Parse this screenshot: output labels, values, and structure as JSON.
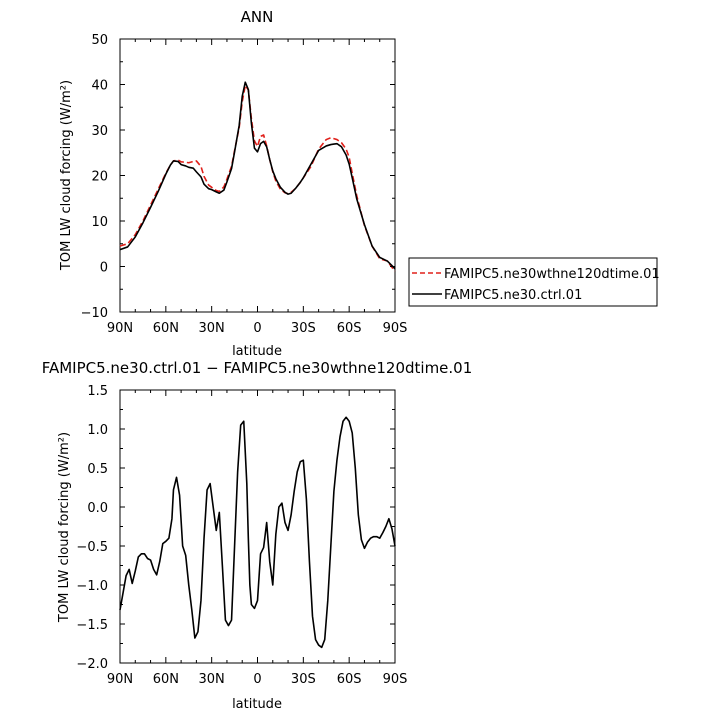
{
  "chart_data": [
    {
      "type": "line",
      "title": "ANN",
      "xlabel": "latitude",
      "ylabel": "TOM LW cloud forcing (W/m²)",
      "xlim": [
        90,
        -90
      ],
      "ylim": [
        -10,
        50
      ],
      "yticks": [
        -10,
        0,
        10,
        20,
        30,
        40,
        50
      ],
      "ytick_labels": [
        "−10",
        "0",
        "10",
        "20",
        "30",
        "40",
        "50"
      ],
      "xticks": [
        90,
        60,
        30,
        0,
        -30,
        -60,
        -90
      ],
      "xtick_labels": [
        "90N",
        "60N",
        "30N",
        "0",
        "30S",
        "60S",
        "90S"
      ],
      "grid": false,
      "legend": "right",
      "series": [
        {
          "name": "FAMIPC5.ne30wthne120dtime.01",
          "color": "#e0201a",
          "dash": "dashed",
          "x": [
            90,
            85,
            80,
            75,
            70,
            65,
            60,
            57,
            55,
            52,
            50,
            47,
            45,
            42,
            40,
            37,
            35,
            32,
            30,
            27,
            25,
            22,
            20,
            17,
            15,
            12,
            10,
            8,
            6,
            4,
            2,
            0,
            -2,
            -4,
            -6,
            -8,
            -10,
            -12,
            -15,
            -18,
            -20,
            -22,
            -25,
            -28,
            -30,
            -35,
            -40,
            -45,
            -48,
            -50,
            -52,
            -55,
            -58,
            -60,
            -62,
            -65,
            -70,
            -75,
            -80,
            -85,
            -88,
            -90
          ],
          "y": [
            4.5,
            5.0,
            7.0,
            10.0,
            13.5,
            17.0,
            20.5,
            22.3,
            23.2,
            23.4,
            23.0,
            22.9,
            22.8,
            23.1,
            23.2,
            22.0,
            19.8,
            17.9,
            17.4,
            16.7,
            16.5,
            17.5,
            19.2,
            22.0,
            25.5,
            30.5,
            36.2,
            39.8,
            38.8,
            32.5,
            27.6,
            26.4,
            28.6,
            28.9,
            26.5,
            23.5,
            20.8,
            18.8,
            17.0,
            16.2,
            16.0,
            16.3,
            17.2,
            18.5,
            19.5,
            22.0,
            25.8,
            27.9,
            28.3,
            28.1,
            27.9,
            27.2,
            25.8,
            24.0,
            20.5,
            15.5,
            9.0,
            4.5,
            1.7,
            1.2,
            -0.2,
            -1.0
          ]
        },
        {
          "name": "FAMIPC5.ne30.ctrl.01",
          "color": "#000000",
          "dash": "solid",
          "x": [
            90,
            85,
            80,
            75,
            70,
            65,
            60,
            57,
            55,
            52,
            50,
            47,
            45,
            42,
            40,
            37,
            35,
            32,
            30,
            27,
            25,
            22,
            20,
            17,
            15,
            12,
            10,
            8,
            6,
            4,
            2,
            0,
            -2,
            -4,
            -6,
            -8,
            -10,
            -12,
            -15,
            -18,
            -20,
            -22,
            -25,
            -28,
            -30,
            -35,
            -40,
            -45,
            -48,
            -50,
            -52,
            -55,
            -58,
            -60,
            -62,
            -65,
            -70,
            -75,
            -80,
            -85,
            -88,
            -90
          ],
          "y": [
            3.7,
            4.3,
            6.5,
            9.6,
            13.0,
            16.5,
            20.3,
            22.3,
            23.2,
            23.1,
            22.4,
            22.1,
            21.8,
            21.6,
            20.8,
            19.7,
            18.1,
            17.1,
            16.9,
            16.4,
            16.1,
            16.8,
            18.6,
            21.5,
            25.2,
            31.0,
            37.4,
            40.5,
            38.9,
            31.5,
            26.0,
            25.2,
            27.0,
            27.5,
            26.3,
            23.5,
            21.0,
            19.3,
            17.4,
            16.3,
            15.9,
            16.1,
            17.2,
            18.5,
            19.5,
            22.5,
            25.5,
            26.5,
            26.8,
            26.9,
            27.0,
            26.3,
            24.5,
            22.5,
            19.5,
            14.8,
            9.2,
            4.5,
            2.0,
            1.2,
            0.2,
            -0.5
          ]
        }
      ]
    },
    {
      "type": "line",
      "title": "FAMIPC5.ne30.ctrl.01 − FAMIPC5.ne30wthne120dtime.01",
      "xlabel": "latitude",
      "ylabel": "TOM LW cloud forcing (W/m²)",
      "xlim": [
        90,
        -90
      ],
      "ylim": [
        -2.0,
        1.5
      ],
      "yticks": [
        -2.0,
        -1.5,
        -1.0,
        -0.5,
        0.0,
        0.5,
        1.0,
        1.5
      ],
      "ytick_labels": [
        "−2.0",
        "−1.5",
        "−1.0",
        "−0.5",
        "0.0",
        "0.5",
        "1.0",
        "1.5"
      ],
      "xticks": [
        90,
        60,
        30,
        0,
        -30,
        -60,
        -90
      ],
      "xtick_labels": [
        "90N",
        "60N",
        "30N",
        "0",
        "30S",
        "60S",
        "90S"
      ],
      "grid": false,
      "series": [
        {
          "color": "#000000",
          "dash": "solid",
          "x": [
            90,
            88,
            86,
            84,
            82,
            80,
            78,
            76,
            74,
            72,
            70,
            68,
            66,
            64,
            62,
            60,
            58,
            56,
            55,
            53,
            51,
            49,
            47,
            45,
            43,
            41,
            39,
            37,
            35,
            33,
            31,
            29,
            27,
            25,
            23,
            21,
            19,
            17,
            15,
            13,
            11,
            9,
            7,
            6,
            5,
            4,
            2,
            0,
            -2,
            -4,
            -6,
            -8,
            -10,
            -12,
            -14,
            -16,
            -18,
            -20,
            -22,
            -24,
            -26,
            -28,
            -30,
            -32,
            -34,
            -36,
            -38,
            -40,
            -42,
            -44,
            -46,
            -48,
            -50,
            -52,
            -54,
            -56,
            -58,
            -60,
            -62,
            -64,
            -66,
            -68,
            -70,
            -72,
            -74,
            -76,
            -78,
            -80,
            -82,
            -84,
            -86,
            -88,
            -90
          ],
          "y": [
            -1.32,
            -1.1,
            -0.88,
            -0.8,
            -0.98,
            -0.82,
            -0.64,
            -0.6,
            -0.6,
            -0.66,
            -0.68,
            -0.8,
            -0.87,
            -0.7,
            -0.47,
            -0.44,
            -0.4,
            -0.15,
            0.22,
            0.38,
            0.15,
            -0.5,
            -0.62,
            -1.0,
            -1.32,
            -1.68,
            -1.6,
            -1.2,
            -0.4,
            0.22,
            0.3,
            0.0,
            -0.3,
            -0.07,
            -0.75,
            -1.45,
            -1.52,
            -1.45,
            -0.5,
            0.45,
            1.05,
            1.1,
            0.3,
            -0.4,
            -1.0,
            -1.25,
            -1.3,
            -1.2,
            -0.6,
            -0.52,
            -0.2,
            -0.7,
            -1.0,
            -0.35,
            0.0,
            0.05,
            -0.2,
            -0.3,
            -0.1,
            0.2,
            0.45,
            0.58,
            0.6,
            0.1,
            -0.7,
            -1.4,
            -1.7,
            -1.77,
            -1.8,
            -1.7,
            -1.2,
            -0.5,
            0.2,
            0.6,
            0.9,
            1.1,
            1.15,
            1.1,
            0.95,
            0.5,
            -0.1,
            -0.42,
            -0.53,
            -0.45,
            -0.4,
            -0.38,
            -0.38,
            -0.4,
            -0.33,
            -0.25,
            -0.15,
            -0.28,
            -0.5
          ]
        }
      ]
    }
  ]
}
